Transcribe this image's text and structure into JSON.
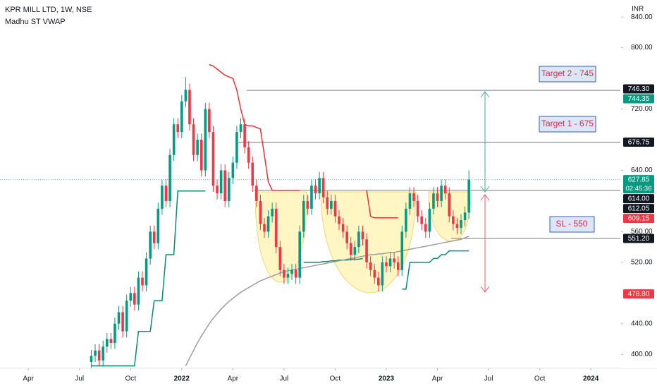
{
  "chart_data": {
    "type": "candlestick",
    "title": "KPR MILL LTD, 1W, NSE",
    "subtitle": "Madhu ST VWAP",
    "currency": "INR",
    "countdown": "02:45:36",
    "up_color": "#089981",
    "down_color": "#f23645",
    "open": [
      390,
      398,
      405,
      392,
      410,
      420,
      415,
      440,
      455,
      430,
      470,
      480,
      465,
      500,
      490,
      525,
      560,
      545,
      590,
      620,
      600,
      660,
      700,
      690,
      730,
      745,
      700,
      660,
      680,
      640,
      720,
      690,
      620,
      610,
      640,
      600,
      630,
      650,
      690,
      700,
      670,
      650,
      620,
      600,
      570,
      560,
      580,
      590,
      540,
      510,
      500,
      505,
      510,
      500,
      560,
      600,
      590,
      620,
      610,
      630,
      605,
      590,
      600,
      580,
      570,
      560,
      545,
      530,
      540,
      560,
      550,
      520,
      510,
      500,
      490,
      520,
      515,
      525,
      520,
      510,
      560,
      590,
      610,
      600,
      580,
      570,
      560,
      590,
      610,
      600,
      620,
      610,
      580,
      570,
      565,
      575,
      585
    ],
    "high": [
      406,
      413,
      413,
      418,
      428,
      428,
      448,
      463,
      463,
      478,
      488,
      488,
      508,
      508,
      533,
      568,
      568,
      598,
      628,
      628,
      668,
      708,
      708,
      738,
      762,
      753,
      708,
      688,
      688,
      728,
      728,
      698,
      628,
      648,
      648,
      638,
      658,
      698,
      708,
      708,
      678,
      658,
      628,
      608,
      578,
      588,
      598,
      598,
      548,
      518,
      513,
      518,
      518,
      568,
      608,
      608,
      628,
      628,
      638,
      638,
      613,
      608,
      608,
      588,
      578,
      568,
      553,
      548,
      568,
      568,
      558,
      528,
      518,
      508,
      528,
      528,
      533,
      533,
      528,
      568,
      598,
      618,
      618,
      608,
      588,
      578,
      598,
      618,
      618,
      628,
      628,
      618,
      588,
      578,
      583,
      593,
      640
    ],
    "low": [
      382,
      390,
      384,
      384,
      402,
      407,
      407,
      432,
      422,
      422,
      462,
      457,
      457,
      482,
      482,
      517,
      537,
      537,
      582,
      592,
      592,
      652,
      682,
      682,
      722,
      692,
      652,
      652,
      632,
      632,
      682,
      612,
      602,
      602,
      592,
      592,
      622,
      642,
      682,
      662,
      642,
      612,
      592,
      562,
      552,
      552,
      572,
      532,
      502,
      492,
      492,
      497,
      492,
      492,
      552,
      582,
      582,
      602,
      602,
      597,
      582,
      582,
      572,
      562,
      552,
      537,
      522,
      522,
      532,
      542,
      512,
      502,
      492,
      482,
      482,
      507,
      507,
      512,
      502,
      502,
      552,
      582,
      592,
      572,
      562,
      552,
      552,
      582,
      592,
      592,
      602,
      572,
      562,
      557,
      557,
      567,
      577
    ],
    "close": [
      398,
      405,
      392,
      410,
      420,
      415,
      440,
      455,
      430,
      470,
      480,
      465,
      500,
      490,
      525,
      560,
      545,
      590,
      620,
      600,
      660,
      700,
      690,
      730,
      745,
      700,
      660,
      680,
      640,
      720,
      690,
      620,
      610,
      640,
      600,
      630,
      650,
      690,
      700,
      670,
      650,
      620,
      600,
      570,
      560,
      580,
      590,
      540,
      510,
      500,
      505,
      510,
      500,
      560,
      600,
      590,
      620,
      610,
      630,
      605,
      590,
      600,
      580,
      570,
      560,
      545,
      530,
      540,
      560,
      550,
      520,
      510,
      500,
      490,
      520,
      515,
      525,
      520,
      510,
      560,
      590,
      610,
      600,
      580,
      570,
      560,
      590,
      610,
      600,
      620,
      610,
      580,
      570,
      565,
      575,
      585,
      627.85
    ],
    "lines": [
      {
        "color": "#0a8a74",
        "values": [
          385,
          385,
          385,
          385,
          385,
          385,
          385,
          385,
          385,
          385,
          385,
          385,
          430,
          430,
          430,
          430,
          470,
          470,
          470,
          530,
          530,
          530,
          613,
          613,
          613,
          613,
          613,
          613,
          613,
          613,
          null,
          null,
          null,
          null,
          null,
          null,
          null,
          null,
          null,
          null,
          null,
          null,
          null,
          null,
          null,
          null,
          null,
          null,
          null,
          null,
          null,
          null,
          null,
          null,
          520,
          520,
          520,
          520,
          520,
          521,
          521,
          522,
          522,
          523,
          523,
          523,
          524,
          524,
          524,
          525,
          null,
          null,
          null,
          null,
          null,
          null,
          null,
          null,
          null,
          485,
          485,
          520,
          520,
          520,
          520,
          520,
          520,
          525,
          525,
          530,
          530,
          535,
          535,
          535,
          535,
          535,
          535
        ]
      },
      {
        "color": "#e8323c",
        "values": [
          null,
          null,
          null,
          null,
          null,
          null,
          null,
          null,
          null,
          null,
          null,
          null,
          null,
          null,
          null,
          null,
          null,
          null,
          null,
          null,
          null,
          null,
          null,
          null,
          null,
          null,
          null,
          null,
          null,
          null,
          778,
          776,
          772,
          768,
          764,
          762,
          760,
          745,
          720,
          700,
          698,
          698,
          696,
          694,
          660,
          625,
          614,
          614,
          614,
          614,
          614,
          614,
          614,
          614,
          null,
          null,
          null,
          null,
          null,
          null,
          null,
          null,
          null,
          null,
          null,
          null,
          null,
          null,
          null,
          null,
          614,
          580,
          578,
          578,
          578,
          578,
          578,
          578,
          578,
          null,
          null,
          null,
          null,
          null,
          null,
          null,
          null,
          null,
          null,
          null,
          null,
          null,
          null,
          null,
          null,
          null,
          null
        ]
      },
      {
        "color": "#9e9e9e",
        "values": [
          null,
          null,
          null,
          null,
          null,
          null,
          null,
          null,
          null,
          null,
          null,
          null,
          null,
          null,
          null,
          null,
          null,
          null,
          null,
          null,
          null,
          null,
          null,
          null,
          385,
          395,
          405,
          415,
          424,
          432,
          440,
          447,
          453,
          459,
          464,
          469,
          473,
          477,
          481,
          484,
          487,
          490,
          493,
          496,
          498,
          500,
          502,
          504,
          506,
          508,
          509,
          510,
          511,
          512,
          513,
          514,
          515,
          516,
          517,
          518,
          519,
          520,
          521,
          522,
          523,
          524,
          525,
          526,
          527,
          528,
          529,
          530,
          530,
          531,
          531,
          532,
          533,
          533,
          534,
          535,
          536,
          537,
          538,
          539,
          540,
          541,
          542,
          543,
          544,
          545,
          546,
          547,
          548,
          549,
          550,
          552,
          554
        ]
      }
    ],
    "hlines": [
      {
        "value": 744.35
      },
      {
        "value": 676.75
      },
      {
        "value": 614.0
      },
      {
        "value": 551.2
      }
    ],
    "annotations": [
      {
        "text": "Target 2 - 745"
      },
      {
        "text": "Target 1 - 675"
      },
      {
        "text": "SL - 550"
      }
    ],
    "badges": [
      {
        "value": 746.3,
        "label": "746.30",
        "color": "#131722"
      },
      {
        "value": 744.35,
        "label": "744.35",
        "color": "#089981"
      },
      {
        "value": 676.75,
        "label": "676.75",
        "color": "#131722"
      },
      {
        "value": 627.85,
        "label": "627.85",
        "color": "#089981"
      },
      {
        "value": 614.0,
        "label": "614.00",
        "color": "#131722"
      },
      {
        "value": 612.05,
        "label": "612.05",
        "color": "#131722"
      },
      {
        "value": 609.15,
        "label": "609.15",
        "color": "#f23645"
      },
      {
        "value": 551.2,
        "label": "551.20",
        "color": "#131722"
      },
      {
        "value": 478.8,
        "label": "478.80",
        "color": "#f23645"
      }
    ],
    "xlim": [
      -23.2,
      134.5
    ],
    "ylim": [
      383.7,
      862.2
    ],
    "yticks": [
      {
        "value": 400,
        "label": "400.00"
      },
      {
        "value": 440,
        "label": "440.00"
      },
      {
        "value": 520,
        "label": "520.00"
      },
      {
        "value": 560,
        "label": "560.00"
      },
      {
        "value": 640,
        "label": "640.00"
      },
      {
        "value": 720,
        "label": "720.00"
      },
      {
        "value": 800,
        "label": "800.00"
      },
      {
        "value": 840,
        "label": "840.00"
      }
    ],
    "xticks": [
      {
        "value": -16,
        "label": "Apr"
      },
      {
        "value": -3,
        "label": "Jul"
      },
      {
        "value": 10,
        "label": "Oct"
      },
      {
        "value": 23,
        "label": "2022"
      },
      {
        "value": 36,
        "label": "Apr"
      },
      {
        "value": 49,
        "label": "Jul"
      },
      {
        "value": 62,
        "label": "Oct"
      },
      {
        "value": 75,
        "label": "2023"
      },
      {
        "value": 88,
        "label": "Apr"
      },
      {
        "value": 101,
        "label": "Jul"
      },
      {
        "value": 114,
        "label": "Oct"
      },
      {
        "value": 127,
        "label": "2024"
      }
    ],
    "grid": false
  }
}
